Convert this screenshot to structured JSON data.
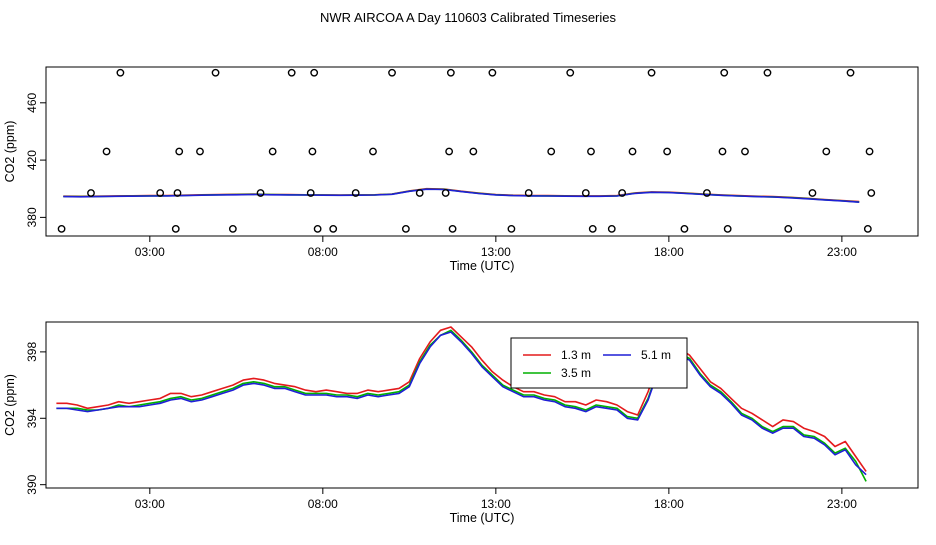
{
  "page": {
    "title": "NWR AIRCOA A  Day 110603  Calibrated Timeseries"
  },
  "colors": {
    "h13": "#e41a1c",
    "h35": "#00b000",
    "h51": "#1f1fd6",
    "points": "#000000",
    "axis": "#000000"
  },
  "chart_data": [
    {
      "type": "line",
      "xlabel": "Time (UTC)",
      "ylabel": "CO2 (ppm)",
      "xlim": [
        0,
        25.2
      ],
      "ylim": [
        367,
        485
      ],
      "x_ticks": [
        3,
        8,
        13,
        18,
        23
      ],
      "x_tick_labels": [
        "03:00",
        "08:00",
        "13:00",
        "18:00",
        "23:00"
      ],
      "y_ticks": [
        380,
        420,
        460
      ],
      "y_tick_labels": [
        "380",
        "420",
        "460"
      ],
      "grid": false,
      "scatter_points": {
        "x": [
          0.45,
          1.3,
          1.75,
          2.15,
          3.75,
          3.3,
          3.8,
          3.85,
          4.45,
          4.9,
          5.4,
          6.2,
          6.55,
          7.1,
          7.65,
          7.7,
          7.75,
          7.85,
          8.3,
          8.95,
          9.45,
          10.0,
          10.4,
          10.8,
          11.55,
          11.65,
          11.7,
          11.75,
          12.35,
          12.9,
          13.45,
          13.95,
          14.6,
          15.15,
          15.6,
          15.75,
          15.8,
          16.35,
          16.65,
          16.95,
          17.5,
          17.95,
          18.45,
          19.1,
          19.55,
          19.6,
          19.7,
          20.2,
          20.85,
          21.45,
          22.15,
          22.55,
          23.25,
          23.75,
          23.8,
          23.85
        ],
        "y": [
          372,
          397,
          426,
          481,
          372,
          397,
          397,
          426,
          426,
          481,
          372,
          397,
          426,
          481,
          397,
          426,
          481,
          372,
          372,
          397,
          426,
          481,
          372,
          397,
          397,
          426,
          481,
          372,
          426,
          481,
          372,
          397,
          426,
          481,
          397,
          426,
          372,
          372,
          397,
          426,
          481,
          426,
          372,
          397,
          426,
          481,
          372,
          426,
          481,
          372,
          397,
          426,
          481,
          372,
          426,
          397
        ]
      },
      "x": [
        0.5,
        1,
        1.5,
        2,
        2.5,
        3,
        3.5,
        4,
        4.5,
        5,
        5.5,
        6,
        6.5,
        7,
        7.5,
        8,
        8.5,
        9,
        9.5,
        10,
        10.5,
        11,
        11.5,
        12,
        12.5,
        13,
        13.5,
        14,
        14.5,
        15,
        15.5,
        16,
        16.5,
        17,
        17.5,
        18,
        18.5,
        19,
        19.5,
        20,
        20.5,
        21,
        21.5,
        22,
        22.5,
        23,
        23.5
      ],
      "series": [
        {
          "name": "1.3 m",
          "values": [
            394.8,
            394.7,
            394.8,
            395.0,
            395.1,
            395.2,
            395.3,
            395.5,
            395.8,
            396.0,
            396.1,
            396.3,
            396.0,
            395.9,
            395.8,
            395.7,
            395.6,
            395.7,
            395.8,
            396.3,
            398.5,
            400.0,
            399.8,
            398.3,
            397.0,
            396.0,
            395.5,
            395.3,
            395.2,
            395.1,
            395.0,
            395.0,
            395.2,
            397.0,
            397.8,
            397.6,
            397.0,
            396.3,
            395.7,
            395.2,
            394.8,
            394.5,
            394.0,
            393.3,
            392.5,
            391.8,
            391.0
          ]
        },
        {
          "name": "3.5 m",
          "values": [
            394.6,
            394.5,
            394.6,
            394.8,
            394.9,
            395.0,
            395.1,
            395.3,
            395.6,
            395.8,
            395.9,
            396.1,
            395.9,
            395.8,
            395.7,
            395.6,
            395.5,
            395.6,
            395.7,
            396.2,
            398.3,
            399.8,
            399.6,
            398.1,
            396.8,
            395.8,
            395.3,
            395.1,
            395.0,
            394.9,
            394.8,
            394.8,
            395.0,
            396.8,
            397.6,
            397.4,
            396.8,
            396.1,
            395.5,
            395.0,
            394.6,
            394.3,
            393.8,
            393.1,
            392.3,
            391.6,
            390.7
          ]
        },
        {
          "name": "5.1 m",
          "values": [
            394.5,
            394.4,
            394.5,
            394.7,
            394.8,
            394.9,
            395.0,
            395.2,
            395.5,
            395.7,
            395.8,
            396.0,
            395.8,
            395.7,
            395.6,
            395.5,
            395.4,
            395.5,
            395.6,
            396.1,
            398.2,
            399.7,
            399.5,
            398.0,
            396.7,
            395.7,
            395.2,
            395.0,
            394.9,
            394.8,
            394.7,
            394.7,
            394.9,
            396.7,
            397.5,
            397.3,
            396.7,
            396.0,
            395.4,
            394.9,
            394.5,
            394.2,
            393.7,
            393.0,
            392.2,
            391.5,
            390.6
          ]
        }
      ]
    },
    {
      "type": "line",
      "xlabel": "Time (UTC)",
      "ylabel": "CO2 (ppm)",
      "xlim": [
        0,
        25.2
      ],
      "ylim": [
        389.8,
        399.8
      ],
      "x_ticks": [
        3,
        8,
        13,
        18,
        23
      ],
      "x_tick_labels": [
        "03:00",
        "08:00",
        "13:00",
        "18:00",
        "23:00"
      ],
      "y_ticks": [
        390,
        394,
        398
      ],
      "y_tick_labels": [
        "390",
        "394",
        "398"
      ],
      "grid": false,
      "legend": {
        "position": "top-center",
        "entries": [
          "1.3 m",
          "3.5 m",
          "5.1 m"
        ]
      },
      "x": [
        0.3,
        0.6,
        0.9,
        1.2,
        1.5,
        1.8,
        2.1,
        2.4,
        2.7,
        3.0,
        3.3,
        3.6,
        3.9,
        4.2,
        4.5,
        4.8,
        5.1,
        5.4,
        5.7,
        6.0,
        6.3,
        6.6,
        6.9,
        7.2,
        7.5,
        7.8,
        8.1,
        8.4,
        8.7,
        9.0,
        9.3,
        9.6,
        9.9,
        10.2,
        10.5,
        10.8,
        11.1,
        11.4,
        11.7,
        12.0,
        12.3,
        12.6,
        12.9,
        13.2,
        13.5,
        13.8,
        14.1,
        14.4,
        14.7,
        15.0,
        15.3,
        15.6,
        15.9,
        16.2,
        16.5,
        16.8,
        17.1,
        17.4,
        17.7,
        18.0,
        18.3,
        18.6,
        18.9,
        19.2,
        19.5,
        19.8,
        20.1,
        20.4,
        20.7,
        21.0,
        21.3,
        21.6,
        21.9,
        22.2,
        22.5,
        22.8,
        23.1,
        23.4,
        23.7
      ],
      "series": [
        {
          "name": "1.3 m",
          "values": [
            394.9,
            394.9,
            394.8,
            394.6,
            394.7,
            394.8,
            395.0,
            394.9,
            395.0,
            395.1,
            395.2,
            395.5,
            395.5,
            395.3,
            395.4,
            395.6,
            395.8,
            396.0,
            396.3,
            396.4,
            396.3,
            396.1,
            396.0,
            395.9,
            395.7,
            395.6,
            395.7,
            395.6,
            395.5,
            395.5,
            395.7,
            395.6,
            395.7,
            395.8,
            396.2,
            397.6,
            398.6,
            399.3,
            399.5,
            398.9,
            398.3,
            397.5,
            396.8,
            396.3,
            395.9,
            395.6,
            395.6,
            395.4,
            395.3,
            395.0,
            395.0,
            394.8,
            395.1,
            395.0,
            394.8,
            394.4,
            394.2,
            395.6,
            397.4,
            397.2,
            398.2,
            397.8,
            397.0,
            396.2,
            395.8,
            395.2,
            394.6,
            394.3,
            393.9,
            393.5,
            393.9,
            393.8,
            393.4,
            393.2,
            392.9,
            392.3,
            392.6,
            391.7,
            390.8
          ]
        },
        {
          "name": "3.5 m",
          "values": [
            394.6,
            394.6,
            394.6,
            394.5,
            394.5,
            394.6,
            394.8,
            394.7,
            394.8,
            394.9,
            395.0,
            395.2,
            395.3,
            395.1,
            395.2,
            395.4,
            395.6,
            395.8,
            396.1,
            396.2,
            396.1,
            395.9,
            395.9,
            395.7,
            395.5,
            395.5,
            395.5,
            395.4,
            395.4,
            395.3,
            395.5,
            395.4,
            395.5,
            395.6,
            396.0,
            397.4,
            398.4,
            399.0,
            399.3,
            398.7,
            398.0,
            397.2,
            396.6,
            396.0,
            395.7,
            395.4,
            395.4,
            395.2,
            395.1,
            394.8,
            394.7,
            394.5,
            394.8,
            394.7,
            394.6,
            394.1,
            394.0,
            395.2,
            397.0,
            396.8,
            397.9,
            397.6,
            396.7,
            396.0,
            395.6,
            395.0,
            394.3,
            394.0,
            393.5,
            393.2,
            393.5,
            393.5,
            393.0,
            392.9,
            392.5,
            391.9,
            392.2,
            391.4,
            390.2
          ]
        },
        {
          "name": "5.1 m",
          "values": [
            394.6,
            394.6,
            394.5,
            394.4,
            394.5,
            394.6,
            394.7,
            394.7,
            394.7,
            394.8,
            394.9,
            395.1,
            395.2,
            395.0,
            395.1,
            395.3,
            395.5,
            395.7,
            396.0,
            396.1,
            396.0,
            395.8,
            395.8,
            395.6,
            395.4,
            395.4,
            395.4,
            395.3,
            395.3,
            395.2,
            395.4,
            395.3,
            395.4,
            395.5,
            395.9,
            397.3,
            398.3,
            399.0,
            399.2,
            398.6,
            397.9,
            397.1,
            396.5,
            395.9,
            395.6,
            395.3,
            395.3,
            395.1,
            395.0,
            394.7,
            394.6,
            394.4,
            394.7,
            394.6,
            394.5,
            394.0,
            393.9,
            395.1,
            396.9,
            396.7,
            397.8,
            397.5,
            396.6,
            395.9,
            395.5,
            394.9,
            394.2,
            393.9,
            393.4,
            393.1,
            393.4,
            393.4,
            392.9,
            392.8,
            392.4,
            391.8,
            392.1,
            391.2,
            390.6
          ]
        }
      ]
    }
  ]
}
